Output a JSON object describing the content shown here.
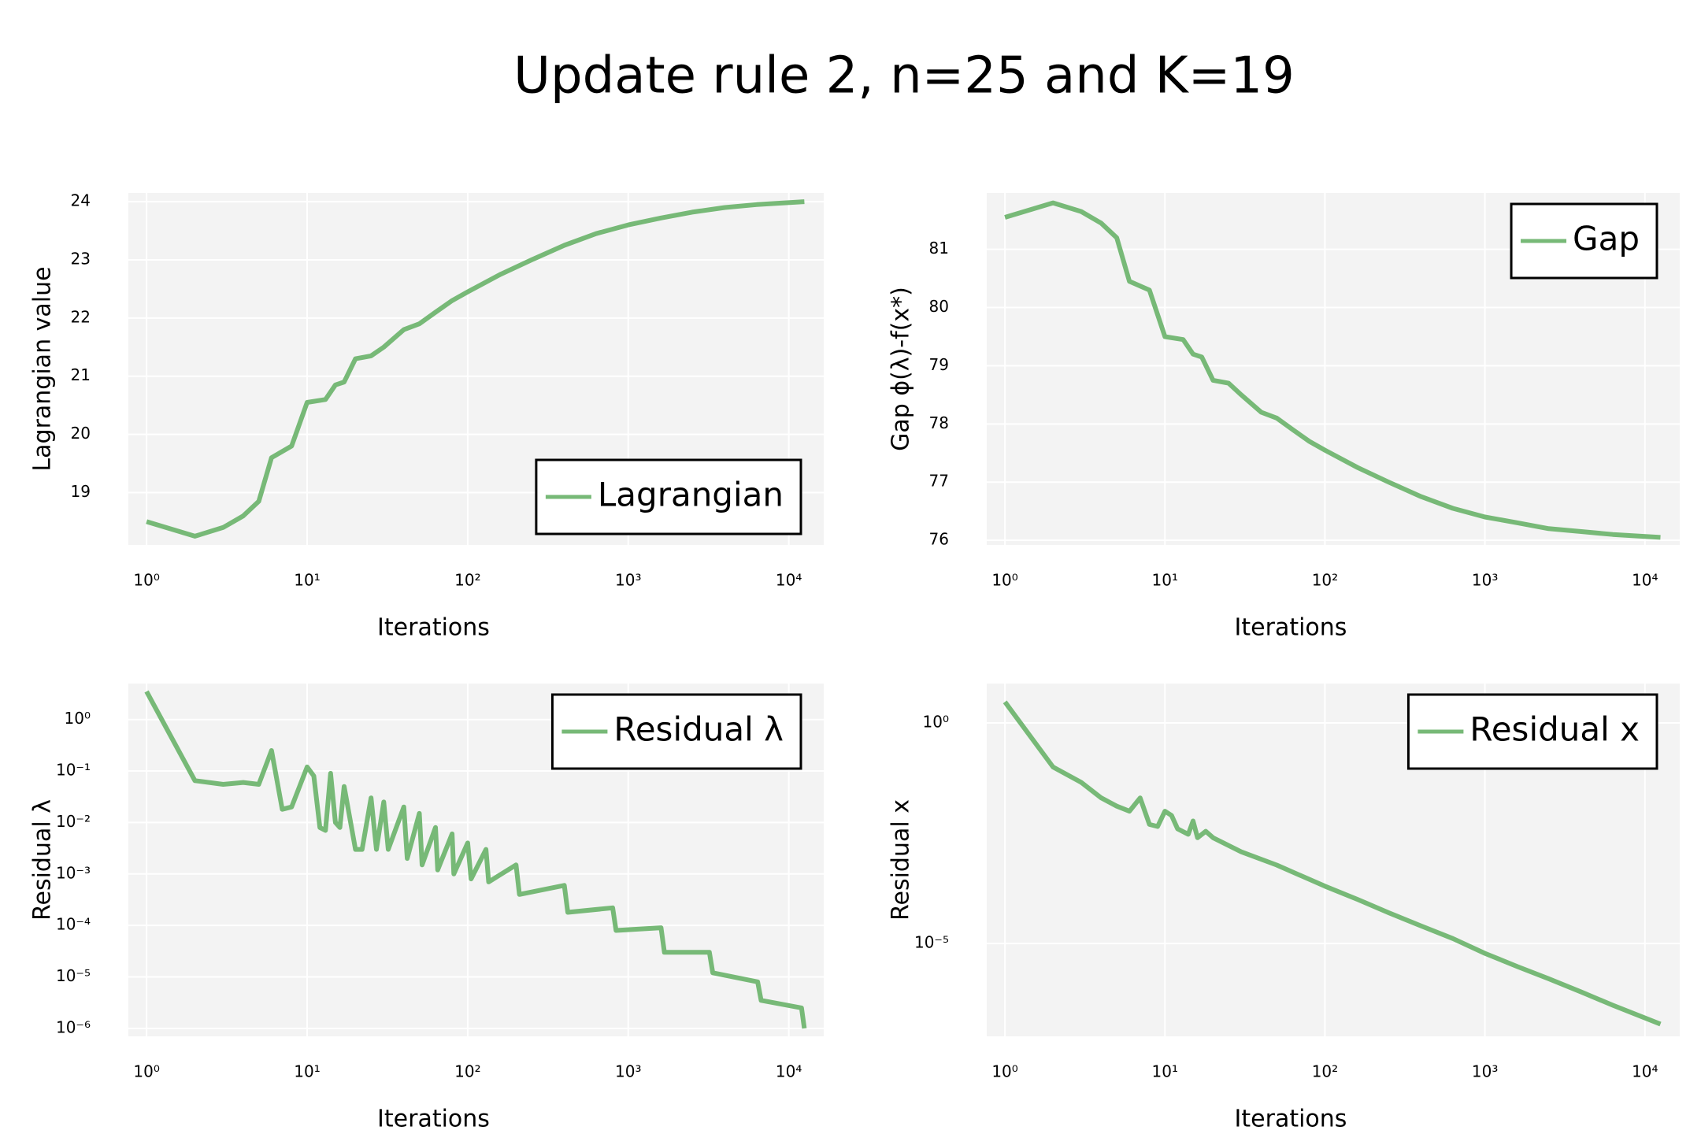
{
  "title": "Update rule 2, n=25 and K=19",
  "chart_data": [
    {
      "type": "line",
      "xlabel": "Iterations",
      "ylabel": "Lagrangian value",
      "xscale": "log",
      "yscale": "linear",
      "grid": true,
      "legend": "lower right",
      "x": [
        1,
        2,
        3,
        4,
        5,
        6,
        8,
        10,
        13,
        15,
        17,
        20,
        25,
        30,
        40,
        50,
        63,
        80,
        100,
        160,
        250,
        400,
        630,
        1000,
        1600,
        2500,
        4000,
        6300,
        12500
      ],
      "series": [
        {
          "name": "Lagrangian",
          "color": "#77b977",
          "values": [
            18.5,
            18.25,
            18.4,
            18.6,
            18.85,
            19.6,
            19.8,
            20.55,
            20.6,
            20.85,
            20.9,
            21.3,
            21.35,
            21.5,
            21.8,
            21.9,
            22.1,
            22.3,
            22.45,
            22.75,
            23.0,
            23.25,
            23.45,
            23.6,
            23.72,
            23.82,
            23.9,
            23.95,
            24.0
          ]
        }
      ],
      "xlim": [
        0.77,
        16500
      ],
      "xticks": [
        {
          "value": 1,
          "label": "10⁰"
        },
        {
          "value": 10,
          "label": "10¹"
        },
        {
          "value": 100,
          "label": "10²"
        },
        {
          "value": 1000,
          "label": "10³"
        },
        {
          "value": 10000,
          "label": "10⁴"
        }
      ],
      "ylim": [
        18.1,
        24.15
      ],
      "yticks": [
        19,
        20,
        21,
        22,
        23,
        24
      ]
    },
    {
      "type": "line",
      "xlabel": "Iterations",
      "ylabel": "Gap ϕ(λ)-f(x*)",
      "xscale": "log",
      "yscale": "linear",
      "grid": true,
      "legend": "upper right",
      "x": [
        1,
        2,
        3,
        4,
        5,
        6,
        8,
        10,
        13,
        15,
        17,
        20,
        25,
        30,
        40,
        50,
        63,
        80,
        100,
        160,
        250,
        400,
        630,
        1000,
        1600,
        2500,
        4000,
        6300,
        12500
      ],
      "series": [
        {
          "name": "Gap",
          "color": "#77b977",
          "values": [
            81.55,
            81.8,
            81.65,
            81.45,
            81.2,
            80.45,
            80.3,
            79.5,
            79.45,
            79.2,
            79.15,
            78.75,
            78.7,
            78.5,
            78.2,
            78.1,
            77.9,
            77.7,
            77.55,
            77.25,
            77.0,
            76.75,
            76.55,
            76.4,
            76.3,
            76.2,
            76.15,
            76.1,
            76.05
          ]
        }
      ],
      "xlim": [
        0.77,
        16500
      ],
      "xticks": [
        {
          "value": 1,
          "label": "10⁰"
        },
        {
          "value": 10,
          "label": "10¹"
        },
        {
          "value": 100,
          "label": "10²"
        },
        {
          "value": 1000,
          "label": "10³"
        },
        {
          "value": 10000,
          "label": "10⁴"
        }
      ],
      "ylim": [
        75.92,
        81.97
      ],
      "yticks": [
        76,
        77,
        78,
        79,
        80,
        81
      ]
    },
    {
      "type": "line",
      "xlabel": "Iterations",
      "ylabel": "Residual λ",
      "xscale": "log",
      "yscale": "log",
      "grid": true,
      "legend": "upper right",
      "x": [
        1,
        2,
        3,
        4,
        5,
        6,
        7,
        8,
        10,
        11,
        12,
        13,
        14,
        15,
        16,
        17,
        20,
        22,
        25,
        27,
        30,
        32,
        40,
        42,
        50,
        52,
        63,
        65,
        80,
        82,
        100,
        105,
        130,
        135,
        200,
        210,
        400,
        420,
        800,
        840,
        1600,
        1680,
        3200,
        3360,
        6400,
        6720,
        12000,
        12500
      ],
      "series": [
        {
          "name": "Residual λ",
          "color": "#77b977",
          "values": [
            3.5,
            0.065,
            0.055,
            0.06,
            0.055,
            0.25,
            0.018,
            0.02,
            0.12,
            0.08,
            0.008,
            0.007,
            0.09,
            0.01,
            0.008,
            0.05,
            0.003,
            0.003,
            0.03,
            0.003,
            0.025,
            0.003,
            0.02,
            0.002,
            0.015,
            0.0015,
            0.008,
            0.0012,
            0.006,
            0.001,
            0.004,
            0.0008,
            0.003,
            0.0007,
            0.0015,
            0.0004,
            0.0006,
            0.00018,
            0.00022,
            8e-05,
            9e-05,
            3e-05,
            3e-05,
            1.2e-05,
            8e-06,
            3.5e-06,
            2.5e-06,
            1e-06
          ]
        }
      ],
      "xlim": [
        0.77,
        16500
      ],
      "xticks": [
        {
          "value": 1,
          "label": "10⁰"
        },
        {
          "value": 10,
          "label": "10¹"
        },
        {
          "value": 100,
          "label": "10²"
        },
        {
          "value": 1000,
          "label": "10³"
        },
        {
          "value": 10000,
          "label": "10⁴"
        }
      ],
      "ylim": [
        7e-07,
        5
      ],
      "yticks": [
        {
          "value": 1,
          "label": "10⁰"
        },
        {
          "value": 0.1,
          "label": "10⁻¹"
        },
        {
          "value": 0.01,
          "label": "10⁻²"
        },
        {
          "value": 0.001,
          "label": "10⁻³"
        },
        {
          "value": 0.0001,
          "label": "10⁻⁴"
        },
        {
          "value": 1e-05,
          "label": "10⁻⁵"
        },
        {
          "value": 1e-06,
          "label": "10⁻⁶"
        }
      ]
    },
    {
      "type": "line",
      "xlabel": "Iterations",
      "ylabel": "Residual x",
      "xscale": "log",
      "yscale": "log",
      "grid": true,
      "legend": "upper right",
      "x": [
        1,
        2,
        3,
        4,
        5,
        6,
        7,
        8,
        9,
        10,
        11,
        12,
        14,
        15,
        16,
        18,
        20,
        30,
        50,
        100,
        160,
        250,
        400,
        630,
        1000,
        1600,
        2500,
        4000,
        6300,
        12500
      ],
      "series": [
        {
          "name": "Residual x",
          "color": "#77b977",
          "values": [
            3,
            0.1,
            0.045,
            0.02,
            0.013,
            0.01,
            0.02,
            0.005,
            0.0045,
            0.01,
            0.008,
            0.004,
            0.003,
            0.006,
            0.0025,
            0.0035,
            0.0025,
            0.0012,
            0.0006,
            0.0002,
            0.0001,
            5e-05,
            2.5e-05,
            1.3e-05,
            6e-06,
            3e-06,
            1.6e-06,
            8e-07,
            4e-07,
            1.5e-07
          ]
        }
      ],
      "xlim": [
        0.77,
        16500
      ],
      "xticks": [
        {
          "value": 1,
          "label": "10⁰"
        },
        {
          "value": 10,
          "label": "10¹"
        },
        {
          "value": 100,
          "label": "10²"
        },
        {
          "value": 1000,
          "label": "10³"
        },
        {
          "value": 10000,
          "label": "10⁴"
        }
      ],
      "ylim": [
        7.9e-08,
        7.8
      ],
      "yticks": [
        {
          "value": 1,
          "label": "10⁰"
        },
        {
          "value": 1e-05,
          "label": "10⁻⁵"
        }
      ]
    }
  ]
}
